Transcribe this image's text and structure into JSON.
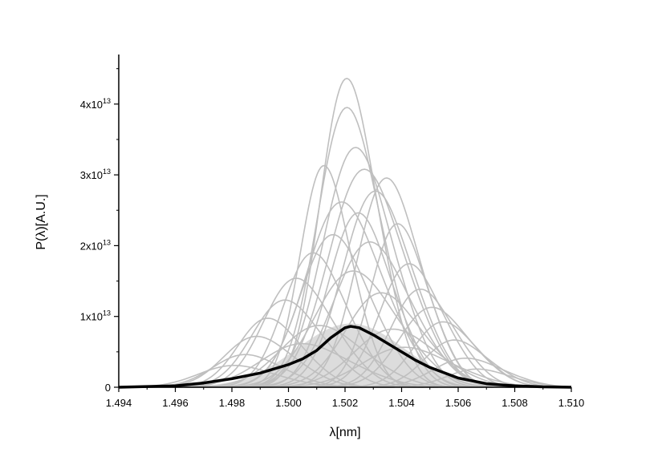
{
  "chart_data": {
    "type": "line",
    "title": "",
    "xlabel": "λ[nm]",
    "ylabel": "P(λ)[A.U.]",
    "xlim": [
      1.494,
      1.51
    ],
    "ylim": [
      0,
      47000000000000.0
    ],
    "grid": false,
    "legend": "none",
    "x_ticks": [
      "1.494",
      "1.496",
      "1.498",
      "1.500",
      "1.502",
      "1.504",
      "1.506",
      "1.508",
      "1.510"
    ],
    "y_ticks": [
      {
        "value": 0,
        "mantissa": "0",
        "exponent": ""
      },
      {
        "value": 10000000000000.0,
        "mantissa": "1x10",
        "exponent": "13"
      },
      {
        "value": 20000000000000.0,
        "mantissa": "2x10",
        "exponent": "13"
      },
      {
        "value": 30000000000000.0,
        "mantissa": "3x10",
        "exponent": "13"
      },
      {
        "value": 40000000000000.0,
        "mantissa": "4x10",
        "exponent": "13"
      }
    ],
    "series": [
      {
        "role": "average",
        "color": "#000000",
        "x": [
          1.494,
          1.496,
          1.497,
          1.498,
          1.499,
          1.5,
          1.5005,
          1.501,
          1.5015,
          1.502,
          1.5022,
          1.5025,
          1.503,
          1.5035,
          1.504,
          1.5045,
          1.505,
          1.506,
          1.507,
          1.508,
          1.509,
          1.51
        ],
        "y": [
          0,
          200000000000.0,
          600000000000.0,
          1200000000000.0,
          2000000000000.0,
          3200000000000.0,
          4000000000000.0,
          5200000000000.0,
          7000000000000.0,
          8400000000000.0,
          8600000000000.0,
          8400000000000.0,
          7400000000000.0,
          6200000000000.0,
          5000000000000.0,
          3800000000000.0,
          2800000000000.0,
          1300000000000.0,
          500000000000.0,
          200000000000.0,
          50000000000.0,
          0
        ]
      }
    ],
    "ensemble": {
      "color": "#bfbfbf",
      "description_peaks": [
        {
          "x": 1.502,
          "y": 42500000000000.0,
          "w": 0.0009
        },
        {
          "x": 1.502,
          "y": 38500000000000.0,
          "w": 0.001
        },
        {
          "x": 1.5023,
          "y": 33000000000000.0,
          "w": 0.0011
        },
        {
          "x": 1.5012,
          "y": 30500000000000.0,
          "w": 0.0008
        },
        {
          "x": 1.5026,
          "y": 30000000000000.0,
          "w": 0.0012
        },
        {
          "x": 1.5034,
          "y": 28800000000000.0,
          "w": 0.001
        },
        {
          "x": 1.503,
          "y": 27000000000000.0,
          "w": 0.0011
        },
        {
          "x": 1.5018,
          "y": 25500000000000.0,
          "w": 0.0012
        },
        {
          "x": 1.5024,
          "y": 24000000000000.0,
          "w": 0.001
        },
        {
          "x": 1.5038,
          "y": 22500000000000.0,
          "w": 0.0009
        },
        {
          "x": 1.5015,
          "y": 21000000000000.0,
          "w": 0.0011
        },
        {
          "x": 1.5028,
          "y": 20000000000000.0,
          "w": 0.0012
        },
        {
          "x": 1.5008,
          "y": 18500000000000.0,
          "w": 0.001
        },
        {
          "x": 1.5042,
          "y": 17000000000000.0,
          "w": 0.001
        },
        {
          "x": 1.5022,
          "y": 16000000000000.0,
          "w": 0.0013
        },
        {
          "x": 1.5002,
          "y": 15000000000000.0,
          "w": 0.0011
        },
        {
          "x": 1.5046,
          "y": 13500000000000.0,
          "w": 0.001
        },
        {
          "x": 1.5032,
          "y": 13000000000000.0,
          "w": 0.0012
        },
        {
          "x": 1.4998,
          "y": 12000000000000.0,
          "w": 0.0011
        },
        {
          "x": 1.505,
          "y": 11000000000000.0,
          "w": 0.0011
        },
        {
          "x": 1.4992,
          "y": 9500000000000.0,
          "w": 0.001
        },
        {
          "x": 1.5054,
          "y": 9000000000000.0,
          "w": 0.001
        },
        {
          "x": 1.501,
          "y": 8500000000000.0,
          "w": 0.0013
        },
        {
          "x": 1.5036,
          "y": 8000000000000.0,
          "w": 0.0013
        },
        {
          "x": 1.4988,
          "y": 7000000000000.0,
          "w": 0.0011
        },
        {
          "x": 1.5058,
          "y": 6500000000000.0,
          "w": 0.001
        },
        {
          "x": 1.5004,
          "y": 6000000000000.0,
          "w": 0.0014
        },
        {
          "x": 1.504,
          "y": 5500000000000.0,
          "w": 0.0014
        },
        {
          "x": 1.4984,
          "y": 4500000000000.0,
          "w": 0.0011
        },
        {
          "x": 1.5062,
          "y": 4000000000000.0,
          "w": 0.0011
        },
        {
          "x": 1.498,
          "y": 3000000000000.0,
          "w": 0.0012
        },
        {
          "x": 1.5066,
          "y": 2500000000000.0,
          "w": 0.001
        }
      ]
    }
  }
}
